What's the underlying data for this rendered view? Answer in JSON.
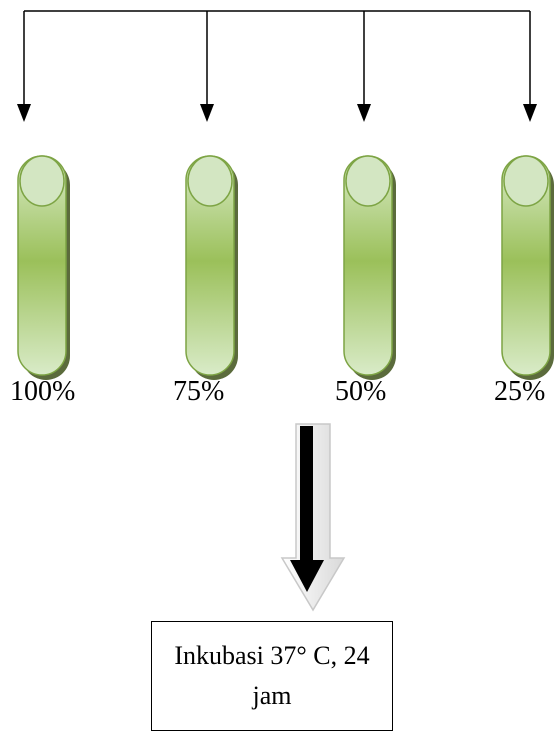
{
  "tubes": [
    {
      "label": "100%"
    },
    {
      "label": "75%"
    },
    {
      "label": "50%"
    },
    {
      "label": "25%"
    }
  ],
  "incubation": {
    "text": "Inkubasi 37° C, 24 jam"
  },
  "colors": {
    "tube_light": "#d7eac4",
    "tube_mid": "#9bc05a",
    "tube_edge": "#6f9a3a",
    "tube_shadow": "#5b6b3c",
    "cap_fill": "#d3e6c2",
    "arrow": "#000000"
  }
}
